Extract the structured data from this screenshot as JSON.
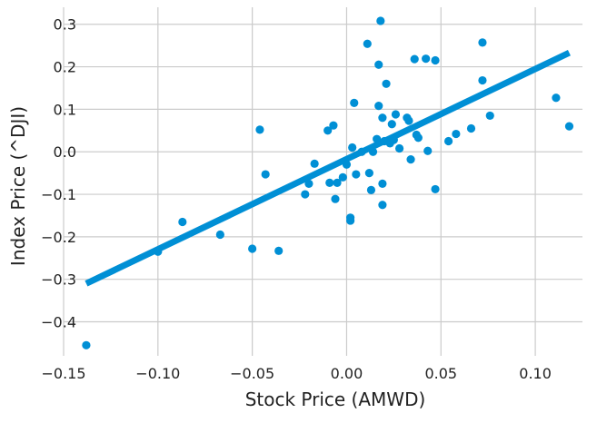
{
  "chart_data": {
    "type": "scatter",
    "xlabel": "Stock Price (AMWD)",
    "ylabel": "Index Price (^DJI)",
    "xlim": [
      -0.15,
      0.125
    ],
    "ylim": [
      -0.48,
      0.34
    ],
    "xticks": [
      -0.15,
      -0.1,
      -0.05,
      0.0,
      0.05,
      0.1
    ],
    "xtick_labels": [
      "−0.15",
      "−0.10",
      "−0.05",
      "0.00",
      "0.05",
      "0.10"
    ],
    "yticks": [
      -0.4,
      -0.3,
      -0.2,
      -0.1,
      0.0,
      0.1,
      0.2,
      0.3
    ],
    "ytick_labels": [
      "−0.4",
      "−0.3",
      "−0.2",
      "−0.1",
      "0.0",
      "0.1",
      "0.2",
      "0.3"
    ],
    "grid": true,
    "point_color": "#008fd5",
    "line_color": "#008fd5",
    "regression_line": {
      "x": [
        -0.138,
        0.118
      ],
      "y": [
        -0.31,
        0.233
      ]
    },
    "points": [
      {
        "x": -0.138,
        "y": -0.455
      },
      {
        "x": -0.1,
        "y": -0.235
      },
      {
        "x": -0.087,
        "y": -0.165
      },
      {
        "x": -0.067,
        "y": -0.195
      },
      {
        "x": -0.05,
        "y": -0.228
      },
      {
        "x": -0.046,
        "y": 0.052
      },
      {
        "x": -0.043,
        "y": -0.053
      },
      {
        "x": -0.036,
        "y": -0.233
      },
      {
        "x": -0.022,
        "y": -0.1
      },
      {
        "x": -0.02,
        "y": -0.075
      },
      {
        "x": -0.017,
        "y": -0.028
      },
      {
        "x": -0.01,
        "y": 0.05
      },
      {
        "x": -0.009,
        "y": -0.073
      },
      {
        "x": -0.007,
        "y": 0.062
      },
      {
        "x": -0.005,
        "y": -0.073
      },
      {
        "x": -0.006,
        "y": -0.111
      },
      {
        "x": -0.002,
        "y": -0.06
      },
      {
        "x": 0.0,
        "y": -0.03
      },
      {
        "x": 0.002,
        "y": -0.155
      },
      {
        "x": 0.002,
        "y": -0.162
      },
      {
        "x": 0.003,
        "y": 0.01
      },
      {
        "x": 0.004,
        "y": 0.115
      },
      {
        "x": 0.005,
        "y": -0.053
      },
      {
        "x": 0.008,
        "y": 0.0
      },
      {
        "x": 0.011,
        "y": 0.254
      },
      {
        "x": 0.012,
        "y": -0.05
      },
      {
        "x": 0.013,
        "y": -0.09
      },
      {
        "x": 0.014,
        "y": 0.0
      },
      {
        "x": 0.016,
        "y": 0.03
      },
      {
        "x": 0.017,
        "y": 0.205
      },
      {
        "x": 0.017,
        "y": 0.108
      },
      {
        "x": 0.018,
        "y": 0.308
      },
      {
        "x": 0.019,
        "y": -0.075
      },
      {
        "x": 0.019,
        "y": -0.125
      },
      {
        "x": 0.019,
        "y": 0.08
      },
      {
        "x": 0.02,
        "y": 0.025
      },
      {
        "x": 0.021,
        "y": 0.16
      },
      {
        "x": 0.023,
        "y": 0.02
      },
      {
        "x": 0.024,
        "y": 0.065
      },
      {
        "x": 0.025,
        "y": 0.028
      },
      {
        "x": 0.026,
        "y": 0.088
      },
      {
        "x": 0.028,
        "y": 0.008
      },
      {
        "x": 0.032,
        "y": 0.08
      },
      {
        "x": 0.033,
        "y": 0.073
      },
      {
        "x": 0.034,
        "y": -0.018
      },
      {
        "x": 0.036,
        "y": 0.218
      },
      {
        "x": 0.037,
        "y": 0.04
      },
      {
        "x": 0.038,
        "y": 0.033
      },
      {
        "x": 0.042,
        "y": 0.219
      },
      {
        "x": 0.043,
        "y": 0.002
      },
      {
        "x": 0.047,
        "y": 0.215
      },
      {
        "x": 0.047,
        "y": -0.088
      },
      {
        "x": 0.054,
        "y": 0.025
      },
      {
        "x": 0.058,
        "y": 0.042
      },
      {
        "x": 0.066,
        "y": 0.055
      },
      {
        "x": 0.072,
        "y": 0.257
      },
      {
        "x": 0.072,
        "y": 0.168
      },
      {
        "x": 0.076,
        "y": 0.085
      },
      {
        "x": 0.111,
        "y": 0.127
      },
      {
        "x": 0.118,
        "y": 0.06
      }
    ]
  }
}
